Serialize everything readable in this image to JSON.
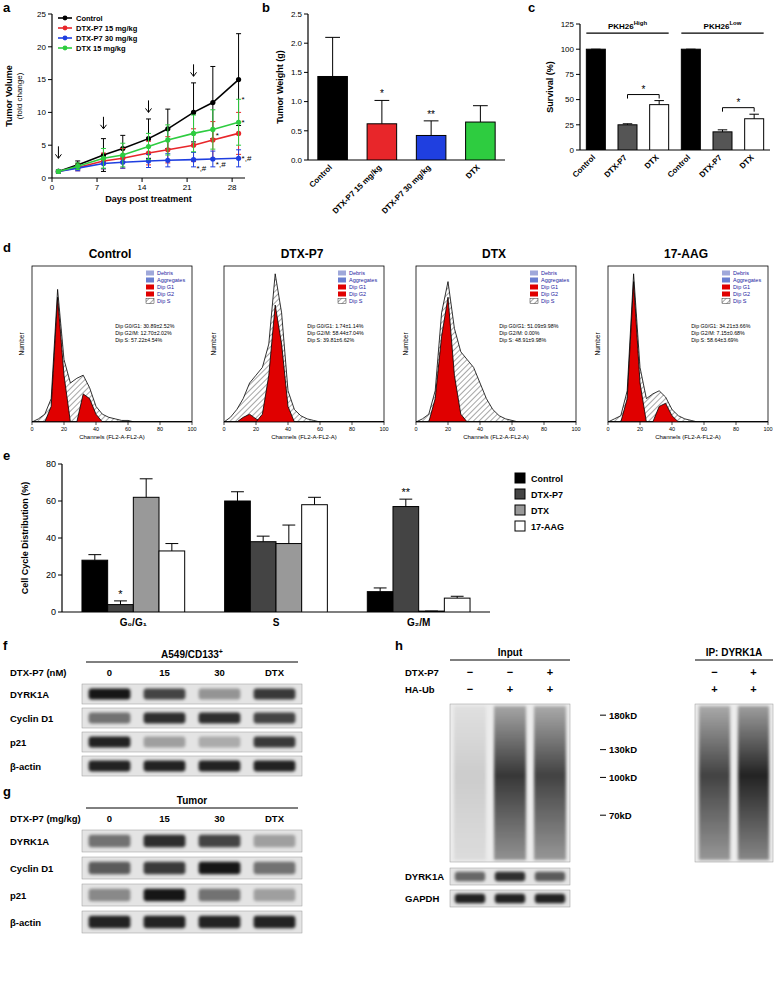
{
  "chart_data": [
    {
      "panel_label": "a",
      "type": "line",
      "x_label": "Days post treatment",
      "y_label": "Tumor Volume",
      "y_label_sub": "(fold change)",
      "x": [
        1,
        4,
        8,
        11,
        15,
        18,
        22,
        25,
        29
      ],
      "xlim": [
        0,
        30
      ],
      "xticks": [
        0,
        7,
        14,
        21,
        28
      ],
      "ylim": [
        0,
        25
      ],
      "yticks": [
        0,
        5,
        10,
        15,
        20,
        25
      ],
      "legend": "top-left",
      "marker": "circle",
      "series": [
        {
          "name": "Control",
          "color": "#000000",
          "values": [
            1,
            2,
            3.5,
            4.5,
            6,
            7.5,
            10,
            11.5,
            15
          ],
          "errors": [
            0.2,
            0.6,
            2.5,
            2,
            3,
            3,
            4.5,
            5.5,
            7
          ]
        },
        {
          "name": "DTX-P7 15 mg/kg",
          "color": "#e8262a",
          "values": [
            1,
            1.6,
            2.6,
            3,
            3.8,
            4.3,
            5,
            5.8,
            6.8
          ],
          "errors": [
            0.2,
            0.5,
            1.2,
            1.5,
            1.8,
            2,
            2.5,
            2.8,
            3.2
          ]
        },
        {
          "name": "DTX-P7 30 mg/kg",
          "color": "#1f3fe0",
          "values": [
            1,
            1.5,
            2.2,
            2.4,
            2.6,
            2.7,
            2.8,
            2.9,
            3
          ],
          "errors": [
            0.2,
            0.4,
            0.8,
            0.9,
            1,
            1,
            1.1,
            1.2,
            1.3
          ]
        },
        {
          "name": "DTX 15 mg/kg",
          "color": "#2ecc40",
          "values": [
            1,
            1.8,
            3,
            3.5,
            4.8,
            5.8,
            6.8,
            7.4,
            8.5
          ],
          "errors": [
            0.2,
            0.5,
            1.5,
            1.8,
            2,
            2.3,
            2.8,
            3,
            3.5
          ]
        }
      ],
      "arrows": [
        {
          "x": 1,
          "y": 3
        },
        {
          "x": 8,
          "y": 7.5
        },
        {
          "x": 15,
          "y": 10
        },
        {
          "x": 22,
          "y": 15.5
        }
      ],
      "annotations": [
        {
          "text": "*",
          "x": 29,
          "y": 12
        },
        {
          "text": "*",
          "x": 29,
          "y": 8.5
        },
        {
          "text": "*,#",
          "x": 29,
          "y": 3
        },
        {
          "text": "*",
          "x": 25,
          "y": 6.5
        },
        {
          "text": "*,#",
          "x": 22,
          "y": 1.6
        },
        {
          "text": "*,#",
          "x": 25,
          "y": 2.2
        }
      ]
    },
    {
      "panel_label": "b",
      "type": "bar",
      "y_label": "Tumor Weight (g)",
      "categories": [
        "Control",
        "DTX-P7 15 mg/kg",
        "DTX-P7 30 mg/kg",
        "DTX"
      ],
      "values": [
        1.43,
        0.62,
        0.42,
        0.65
      ],
      "errors": [
        0.67,
        0.4,
        0.25,
        0.28
      ],
      "colors": [
        "#000000",
        "#e8262a",
        "#1f3fe0",
        "#2ecc40"
      ],
      "ylim": [
        0,
        2.5
      ],
      "yticks": [
        {
          "value": 0,
          "label": "0.0"
        },
        0.5,
        {
          "value": 1,
          "label": "1.0"
        },
        1.5,
        {
          "value": 2,
          "label": "2.0"
        },
        2.5
      ],
      "significance": [
        null,
        "*",
        "**",
        null
      ]
    },
    {
      "panel_label": "c",
      "type": "bar",
      "y_label": "Survival (%)",
      "categories": [
        "Control",
        "DTX-P7",
        "DTX",
        "Control",
        "DTX-P7",
        "DTX"
      ],
      "values": [
        100,
        25,
        45,
        100,
        18,
        31
      ],
      "errors": [
        0,
        1,
        4,
        0,
        2,
        4.5
      ],
      "colors": [
        "#000000",
        "#555555",
        "#ffffff",
        "#000000",
        "#555555",
        "#ffffff"
      ],
      "ylim": [
        0,
        125
      ],
      "yticks": [
        0,
        25,
        50,
        75,
        100,
        125
      ],
      "groups": [
        {
          "label": "PKH26",
          "sup": "High",
          "from": 0,
          "to": 2,
          "y": 116
        },
        {
          "label": "PKH26",
          "sup": "Low",
          "from": 3,
          "to": 5,
          "y": 116
        }
      ],
      "comparisons": [
        {
          "from": 1,
          "to": 2,
          "label": "*",
          "y": 55
        },
        {
          "from": 4,
          "to": 5,
          "label": "*",
          "y": 42
        }
      ]
    },
    {
      "panel_label": "e",
      "type": "bar",
      "y_label": "Cell Cycle Distribution (%)",
      "categories": [
        "G₀/G₁",
        "S",
        "G₂/M"
      ],
      "ylim": [
        0,
        80
      ],
      "yticks": [
        0,
        20,
        40,
        60,
        80
      ],
      "legend": "right",
      "series": [
        {
          "name": "Control",
          "color": "#000000",
          "values": [
            28,
            60,
            11
          ],
          "errors": [
            3,
            5,
            2
          ]
        },
        {
          "name": "DTX-P7",
          "color": "#444444",
          "values": [
            4,
            38,
            57
          ],
          "errors": [
            2,
            3,
            4
          ]
        },
        {
          "name": "DTX",
          "color": "#999999",
          "values": [
            62,
            37,
            0.5
          ],
          "errors": [
            10,
            10,
            0
          ]
        },
        {
          "name": "17-AAG",
          "color": "#ffffff",
          "values": [
            33,
            58,
            7.5
          ],
          "errors": [
            4,
            4,
            1
          ]
        }
      ],
      "annotations": [
        {
          "series": 1,
          "index": 0,
          "text": "*"
        },
        {
          "series": 1,
          "index": 2,
          "text": "**"
        }
      ]
    }
  ],
  "flow": {
    "panel_label": "d",
    "x_label": "Channels (FL2-A-FL2-A)",
    "y_label": "Number",
    "xlim": [
      0,
      100
    ],
    "xticks": [
      0,
      20,
      40,
      60,
      80,
      100
    ],
    "ylim": [
      0,
      100
    ],
    "tick_labels": "x",
    "channels": [
      0,
      4,
      8,
      12,
      16,
      20,
      24,
      28,
      32,
      36,
      40,
      44,
      48,
      52,
      56,
      60,
      64,
      68,
      72,
      76,
      80,
      84,
      88,
      92,
      96,
      100
    ],
    "legend": [
      {
        "name": "Debris",
        "color": "#9fa8da"
      },
      {
        "name": "Aggregates",
        "color": "#6a7fd0"
      },
      {
        "name": "Dip G1",
        "color": "#e00000"
      },
      {
        "name": "Dip G2",
        "color": "#e00000"
      },
      {
        "name": "Dip S",
        "color": "#000000"
      }
    ],
    "panels": [
      {
        "title": "Control",
        "stats": [
          "Dip G0/G1: 30.89±2.52%",
          "Dip G2/M: 12.70±2.02%",
          "Dip S: 57.22±4.54%"
        ],
        "outline": [
          0,
          2,
          5,
          15,
          85,
          40,
          25,
          28,
          30,
          22,
          10,
          5,
          3,
          2,
          1,
          1,
          0,
          0,
          0,
          0,
          0,
          0,
          0,
          0,
          0,
          0
        ],
        "g1": [
          0,
          0,
          0,
          10,
          80,
          30,
          0,
          0,
          0,
          0,
          0,
          0,
          0,
          0,
          0,
          0,
          0,
          0,
          0,
          0,
          0,
          0,
          0,
          0,
          0,
          0
        ],
        "g2": [
          0,
          0,
          0,
          0,
          0,
          0,
          0,
          0,
          18,
          15,
          5,
          0,
          0,
          0,
          0,
          0,
          0,
          0,
          0,
          0,
          0,
          0,
          0,
          0,
          0,
          0
        ]
      },
      {
        "title": "DTX-P7",
        "stats": [
          "Dip G0/G1: 1.74±1.14%",
          "Dip G2/M: 58.44±7.04%",
          "Dip S: 39.81±6.62%"
        ],
        "outline": [
          0,
          3,
          8,
          15,
          25,
          30,
          35,
          50,
          95,
          70,
          20,
          8,
          4,
          2,
          1,
          0,
          0,
          0,
          0,
          0,
          0,
          0,
          0,
          0,
          0,
          0
        ],
        "g1": [
          0,
          0,
          0,
          3,
          5,
          2,
          0,
          0,
          0,
          0,
          0,
          0,
          0,
          0,
          0,
          0,
          0,
          0,
          0,
          0,
          0,
          0,
          0,
          0,
          0,
          0
        ],
        "g2": [
          0,
          0,
          0,
          0,
          0,
          0,
          5,
          30,
          75,
          50,
          10,
          0,
          0,
          0,
          0,
          0,
          0,
          0,
          0,
          0,
          0,
          0,
          0,
          0,
          0,
          0
        ]
      },
      {
        "title": "DTX",
        "stats": [
          "Dip G0/G1: 51.09±9.98%",
          "Dip G2/M: 0.00%",
          "Dip S: 48.91±9.98%"
        ],
        "outline": [
          0,
          2,
          5,
          20,
          70,
          90,
          60,
          45,
          40,
          35,
          25,
          15,
          8,
          4,
          2,
          1,
          0,
          0,
          0,
          0,
          0,
          0,
          0,
          0,
          0,
          0
        ],
        "g1": [
          0,
          0,
          0,
          15,
          55,
          80,
          30,
          5,
          0,
          0,
          0,
          0,
          0,
          0,
          0,
          0,
          0,
          0,
          0,
          0,
          0,
          0,
          0,
          0,
          0,
          0
        ],
        "g2": [
          0,
          0,
          0,
          0,
          0,
          0,
          0,
          0,
          0,
          0,
          0,
          0,
          0,
          0,
          0,
          0,
          0,
          0,
          0,
          0,
          0,
          0,
          0,
          0,
          0,
          0
        ]
      },
      {
        "title": "17-AAG",
        "stats": [
          "Dip G0/G1: 34.21±3.66%",
          "Dip G2/M: 7.15±0.68%",
          "Dip S: 58.64±3.69%"
        ],
        "outline": [
          0,
          2,
          4,
          20,
          95,
          35,
          15,
          18,
          20,
          16,
          8,
          4,
          2,
          1,
          0,
          0,
          0,
          0,
          0,
          0,
          0,
          0,
          0,
          0,
          0,
          0
        ],
        "g1": [
          0,
          0,
          0,
          15,
          90,
          25,
          0,
          0,
          0,
          0,
          0,
          0,
          0,
          0,
          0,
          0,
          0,
          0,
          0,
          0,
          0,
          0,
          0,
          0,
          0,
          0
        ],
        "g2": [
          0,
          0,
          0,
          0,
          0,
          0,
          0,
          0,
          10,
          12,
          4,
          0,
          0,
          0,
          0,
          0,
          0,
          0,
          0,
          0,
          0,
          0,
          0,
          0,
          0,
          0
        ]
      }
    ]
  },
  "blots": [
    {
      "panel_label": "f",
      "title": "A549/CD133",
      "title_sup": "+",
      "treatment_label": "DTX-P7 (nM)",
      "lanes": [
        "0",
        "15",
        "30",
        "DTX"
      ],
      "bands": [
        {
          "name": "DYRK1A",
          "intensity": [
            0.9,
            0.7,
            0.35,
            0.75
          ]
        },
        {
          "name": "Cyclin D1",
          "intensity": [
            0.5,
            0.8,
            0.8,
            0.7
          ]
        },
        {
          "name": "p21",
          "intensity": [
            0.85,
            0.3,
            0.25,
            0.75
          ]
        },
        {
          "name": "β-actin",
          "intensity": [
            0.85,
            0.85,
            0.85,
            0.85
          ]
        }
      ]
    },
    {
      "panel_label": "g",
      "title": "Tumor",
      "title_sup": "",
      "treatment_label": "DTX-P7 (mg/kg)",
      "lanes": [
        "0",
        "15",
        "30",
        "DTX"
      ],
      "bands": [
        {
          "name": "DYRK1A",
          "intensity": [
            0.5,
            0.8,
            0.7,
            0.3
          ]
        },
        {
          "name": "Cyclin D1",
          "intensity": [
            0.6,
            0.75,
            0.9,
            0.5
          ]
        },
        {
          "name": "p21",
          "intensity": [
            0.4,
            0.9,
            0.5,
            0.3
          ]
        },
        {
          "name": "β-actin",
          "intensity": [
            0.85,
            0.85,
            0.85,
            0.85
          ]
        }
      ]
    }
  ],
  "ip_blot": {
    "panel_label": "h",
    "input_title": "Input",
    "ip_title": "IP: DYRK1A",
    "conditions": [
      {
        "name": "DTX-P7",
        "input": [
          "−",
          "−",
          "+"
        ],
        "ip": [
          "−",
          "+"
        ]
      },
      {
        "name": "HA-Ub",
        "input": [
          "−",
          "+",
          "+"
        ],
        "ip": [
          "+",
          "+"
        ]
      }
    ],
    "mw_lim": [
      200,
      45
    ],
    "mw_markers": [
      {
        "value": 180,
        "label": "180kD"
      },
      {
        "value": 130,
        "label": "130kD"
      },
      {
        "value": 100,
        "label": "100kD"
      },
      {
        "value": 70,
        "label": "70kD"
      }
    ],
    "input_smear": [
      0.15,
      0.85,
      0.8
    ],
    "ip_smear": [
      0.8,
      0.95
    ],
    "input_bands": [
      {
        "name": "DYRK1A",
        "intensity": [
          0.55,
          0.8,
          0.6
        ]
      },
      {
        "name": "GAPDH",
        "intensity": [
          0.85,
          0.85,
          0.85
        ]
      }
    ]
  }
}
